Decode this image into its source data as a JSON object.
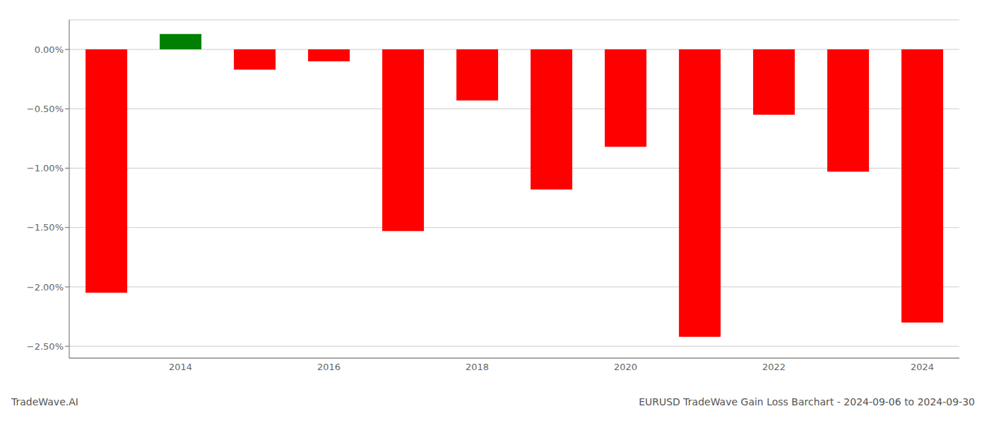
{
  "chart_data": {
    "type": "bar",
    "categories": [
      null,
      "2014",
      null,
      "2016",
      null,
      "2018",
      null,
      "2020",
      null,
      "2022",
      null,
      "2024"
    ],
    "values": [
      -2.05,
      0.13,
      -0.17,
      -0.1,
      -1.53,
      -0.43,
      -1.18,
      -0.82,
      -2.42,
      -0.55,
      -1.03,
      -2.3
    ],
    "colors": [
      "#ff0000",
      "#008000",
      "#ff0000",
      "#ff0000",
      "#ff0000",
      "#ff0000",
      "#ff0000",
      "#ff0000",
      "#ff0000",
      "#ff0000",
      "#ff0000",
      "#ff0000"
    ],
    "ylim": [
      -2.6,
      0.25
    ],
    "yticks": [
      {
        "value": -2.5,
        "label": "−2.50%"
      },
      {
        "value": -2.0,
        "label": "−2.00%"
      },
      {
        "value": -1.5,
        "label": "−1.50%"
      },
      {
        "value": -1.0,
        "label": "−1.00%"
      },
      {
        "value": -0.5,
        "label": "−0.50%"
      },
      {
        "value": 0,
        "label": "0.00%"
      }
    ],
    "grid": true,
    "annotations": [
      "TradeWave.AI",
      "EURUSD TradeWave Gain Loss Barchart - 2024-09-06 to 2024-09-30"
    ]
  }
}
